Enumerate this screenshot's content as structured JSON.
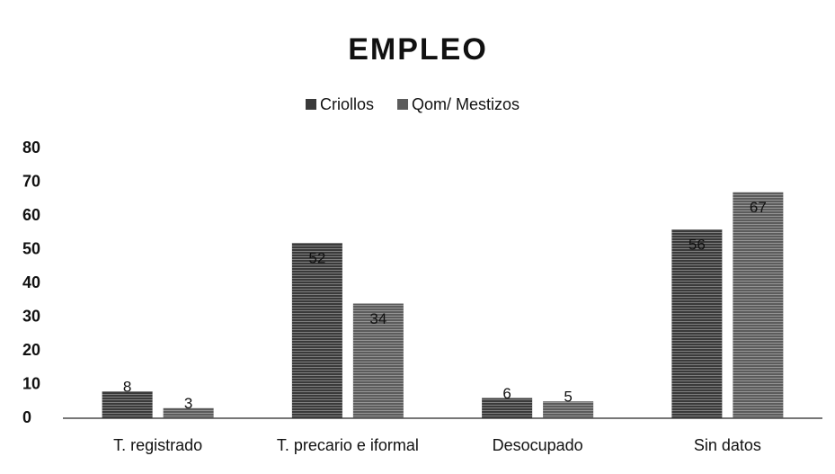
{
  "chart_data": {
    "type": "bar",
    "title": "EMPLEO",
    "categories": [
      "T. registrado",
      "T. precario e iformal",
      "Desocupado",
      "Sin datos"
    ],
    "series": [
      {
        "name": "Criollos",
        "color": "#3a3a3a",
        "values": [
          8,
          52,
          6,
          56
        ]
      },
      {
        "name": "Qom/ Mestizos",
        "color": "#5c5c5c",
        "values": [
          3,
          34,
          5,
          67
        ]
      }
    ],
    "ylim": [
      0,
      80
    ],
    "yticks": [
      0,
      10,
      20,
      30,
      40,
      50,
      60,
      70,
      80
    ],
    "grid": false,
    "legend": "top"
  }
}
